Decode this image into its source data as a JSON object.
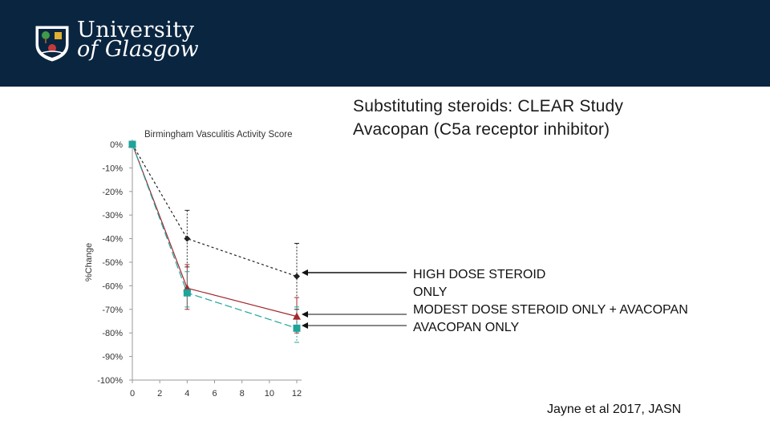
{
  "header": {
    "logo_line1": "University",
    "logo_line2": "of Glasgow",
    "background": "#0a2540",
    "crest_icon": "university-crest-icon"
  },
  "title": {
    "line1": "Substituting steroids: CLEAR Study",
    "line2": "Avacopan (C5a receptor inhibitor)"
  },
  "chart_data": {
    "type": "line",
    "title": "Birmingham Vasculitis Activity Score",
    "xlabel": "",
    "ylabel": "%Change",
    "x": [
      0,
      4,
      12
    ],
    "xticks": [
      0,
      2,
      4,
      6,
      8,
      10,
      12
    ],
    "xlim": [
      0,
      12
    ],
    "yticks": [
      0,
      -10,
      -20,
      -30,
      -40,
      -50,
      -60,
      -70,
      -80,
      -90,
      -100
    ],
    "ylim": [
      -100,
      0
    ],
    "tick_suffix": "%",
    "grid": false,
    "series": [
      {
        "values": [
          0,
          -40,
          -56
        ],
        "err_low": [
          0,
          -28,
          -42
        ],
        "err_high": [
          0,
          -52,
          -70
        ],
        "color": "#222222",
        "marker": "diamond",
        "dash": "3,3"
      },
      {
        "values": [
          0,
          -61,
          -73
        ],
        "err_low": [
          0,
          -51,
          -65
        ],
        "err_high": [
          0,
          -70,
          -80
        ],
        "color": "#a3282b",
        "marker": "triangle",
        "dash": ""
      },
      {
        "values": [
          0,
          -63,
          -78
        ],
        "err_low": [
          0,
          -54,
          -69
        ],
        "err_high": [
          0,
          -69,
          -84
        ],
        "color": "#1fa39a",
        "marker": "square",
        "dash": "9,4"
      }
    ]
  },
  "legend": {
    "line1": "HIGH DOSE STEROID",
    "line2": "ONLY",
    "line3": "MODEST DOSE STEROID ONLY + AVACOPAN",
    "line4": "AVACOPAN ONLY"
  },
  "citation": "Jayne et al 2017, JASN"
}
